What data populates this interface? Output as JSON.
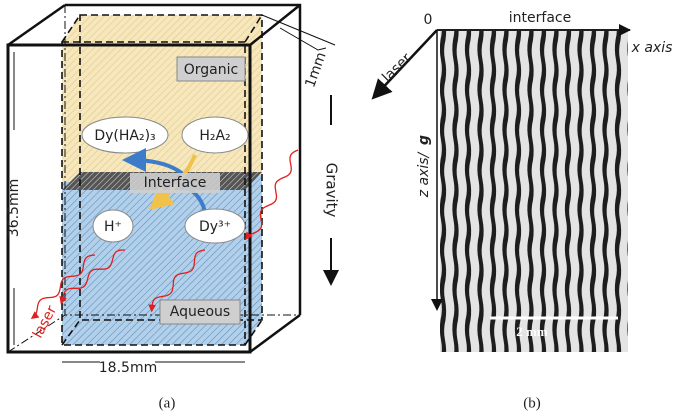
{
  "panel_a": {
    "labels": {
      "organic": "Organic",
      "dy_ha2_3": "Dy(HA₂)₃",
      "h2a2": "H₂A₂",
      "interface": "Interface",
      "h_plus": "H⁺",
      "dy3_plus": "Dy³⁺",
      "aqueous": "Aqueous",
      "laser": "laser",
      "gravity": "Gravity"
    },
    "dimensions": {
      "height": "36.5mm",
      "width": "18.5mm",
      "depth": "1mm"
    },
    "caption": "(a)"
  },
  "panel_b": {
    "origin": "0",
    "interface": "interface",
    "x_axis": "x axis",
    "laser": "laser",
    "z_axis": "z axis/",
    "z_axis_symbol": "g",
    "scale_bar": "2 mm",
    "caption": "(b)"
  }
}
